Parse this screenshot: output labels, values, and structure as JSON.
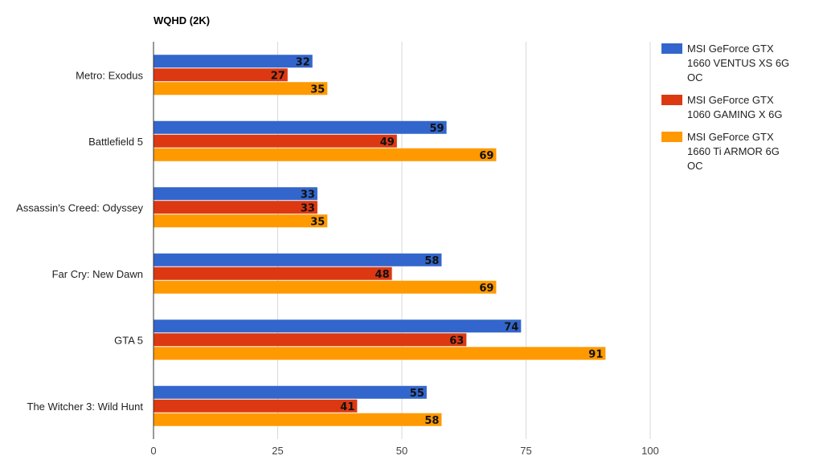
{
  "chart_data": {
    "type": "bar",
    "orientation": "horizontal",
    "title": "WQHD (2K)",
    "categories": [
      "Metro: Exodus",
      "Battlefield 5",
      "Assassin's Creed: Odyssey",
      "Far Cry: New Dawn",
      "GTA 5",
      "The Witcher 3: Wild Hunt"
    ],
    "series": [
      {
        "name": "MSI GeForce GTX 1660 VENTUS XS 6G OC",
        "legend_lines": [
          "MSI GeForce GTX",
          "1660 VENTUS XS 6G",
          "OC"
        ],
        "color": "#3366cc",
        "values": [
          32,
          59,
          33,
          58,
          74,
          55
        ]
      },
      {
        "name": "MSI GeForce GTX 1060 GAMING X 6G",
        "legend_lines": [
          "MSI GeForce GTX",
          "1060 GAMING X 6G"
        ],
        "color": "#dc3912",
        "values": [
          27,
          49,
          33,
          48,
          63,
          41
        ]
      },
      {
        "name": "MSI GeForce GTX 1660 Ti ARMOR 6G OC",
        "legend_lines": [
          "MSI GeForce GTX",
          "1660 Ti ARMOR 6G",
          "OC"
        ],
        "color": "#ff9900",
        "values": [
          35,
          69,
          35,
          69,
          91,
          58
        ]
      }
    ],
    "xlim": [
      0,
      100
    ],
    "xticks": [
      0,
      25,
      50,
      75,
      100
    ],
    "xlabel": "",
    "ylabel": "",
    "grid": true,
    "legend_position": "right"
  }
}
